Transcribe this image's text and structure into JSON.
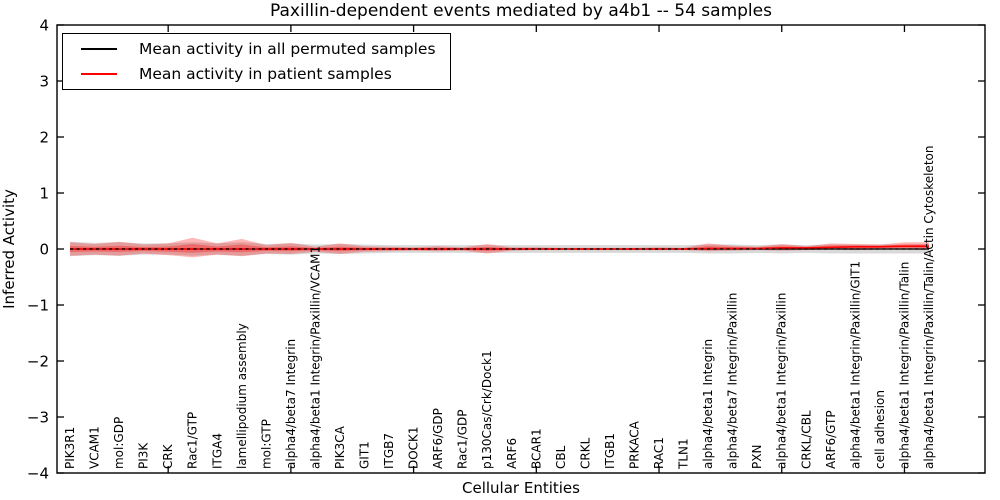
{
  "chart_data": {
    "type": "line",
    "title": "Paxillin-dependent events mediated by a4b1 -- 54 samples",
    "xlabel": "Cellular Entities",
    "ylabel": "Inferred Activity",
    "ylim": [
      -4,
      4
    ],
    "yticks": [
      4,
      3,
      2,
      1,
      0,
      -1,
      -2,
      -3,
      -4
    ],
    "xticks": [
      5,
      10,
      15,
      20,
      25,
      30,
      35
    ],
    "grid": false,
    "legend_position": "upper left",
    "categories": [
      "PIK3R1",
      "VCAM1",
      "mol:GDP",
      "PI3K",
      "CRK",
      "Rac1/GTP",
      "ITGA4",
      "lamellipodium assembly",
      "mol:GTP",
      "alpha4/beta7 Integrin",
      "alpha4/beta1 Integrin/Paxillin/VCAM1",
      "PIK3CA",
      "GIT1",
      "ITGB7",
      "DOCK1",
      "ARF6/GDP",
      "Rac1/GDP",
      "p130Cas/Crk/Dock1",
      "ARF6",
      "BCAR1",
      "CBL",
      "CRKL",
      "ITGB1",
      "PRKACA",
      "RAC1",
      "TLN1",
      "alpha4/beta1 Integrin",
      "alpha4/beta7 Integrin/Paxillin",
      "PXN",
      "alpha4/beta1 Integrin/Paxillin",
      "CRKL/CBL",
      "ARF6/GTP",
      "alpha4/beta1 Integrin/Paxillin/GIT1",
      "cell adhesion",
      "alpha4/beta1 Integrin/Paxillin/Talin",
      "alpha4/beta1 Integrin/Paxillin/Talin/Actin Cytoskeleton"
    ],
    "series": [
      {
        "name": "Mean activity in all permuted samples",
        "color": "#000000",
        "band_color": "#aaaaaa",
        "values": [
          0,
          0,
          0,
          0,
          0,
          0,
          0,
          0,
          0,
          0,
          0,
          0,
          0,
          0,
          0,
          0,
          0,
          0,
          0,
          0,
          0,
          0,
          0,
          0,
          0,
          0,
          0,
          0,
          0,
          0,
          0,
          0,
          0,
          0,
          0,
          0
        ],
        "band_upper": [
          0.13,
          0.11,
          0.12,
          0.1,
          0.1,
          0.12,
          0.1,
          0.12,
          0.09,
          0.1,
          0.08,
          0.09,
          0.08,
          0.07,
          0.07,
          0.07,
          0.07,
          0.07,
          0.07,
          0.07,
          0.07,
          0.07,
          0.07,
          0.07,
          0.07,
          0.07,
          0.08,
          0.08,
          0.07,
          0.08,
          0.07,
          0.08,
          0.08,
          0.08,
          0.08,
          0.08
        ],
        "band_lower": [
          -0.13,
          -0.11,
          -0.12,
          -0.1,
          -0.1,
          -0.12,
          -0.1,
          -0.12,
          -0.09,
          -0.1,
          -0.08,
          -0.09,
          -0.08,
          -0.07,
          -0.07,
          -0.07,
          -0.07,
          -0.07,
          -0.07,
          -0.07,
          -0.07,
          -0.07,
          -0.07,
          -0.07,
          -0.07,
          -0.07,
          -0.08,
          -0.08,
          -0.07,
          -0.08,
          -0.07,
          -0.08,
          -0.08,
          -0.08,
          -0.08,
          -0.08
        ]
      },
      {
        "name": "Mean activity in patient samples",
        "color": "#ff0000",
        "band_color": "#ff0000",
        "values": [
          0,
          0,
          0,
          0,
          0,
          0,
          0,
          0,
          0,
          0,
          0,
          0,
          0,
          0,
          0,
          0,
          0,
          0,
          0,
          0,
          0,
          0,
          0,
          0,
          0,
          0,
          0.01,
          0.01,
          0.01,
          0.02,
          0.02,
          0.03,
          0.04,
          0.04,
          0.05,
          0.05
        ],
        "band_upper": [
          0.12,
          0.09,
          0.13,
          0.08,
          0.1,
          0.2,
          0.1,
          0.18,
          0.07,
          0.11,
          0.04,
          0.1,
          0.05,
          0.04,
          0.03,
          0.05,
          0.03,
          0.09,
          0.03,
          0.03,
          0.02,
          0.02,
          0.02,
          0.02,
          0.03,
          0.02,
          0.1,
          0.06,
          0.04,
          0.09,
          0.05,
          0.1,
          0.09,
          0.08,
          0.12,
          0.12
        ],
        "band_lower": [
          -0.12,
          -0.1,
          -0.12,
          -0.08,
          -0.11,
          -0.15,
          -0.1,
          -0.13,
          -0.08,
          -0.09,
          -0.05,
          -0.09,
          -0.05,
          -0.04,
          -0.03,
          -0.04,
          -0.03,
          -0.08,
          -0.03,
          -0.02,
          -0.02,
          -0.02,
          -0.02,
          -0.02,
          -0.02,
          -0.02,
          -0.04,
          -0.03,
          -0.02,
          -0.03,
          -0.02,
          -0.01,
          -0.02,
          -0.01,
          -0.01,
          -0.02
        ]
      }
    ]
  }
}
